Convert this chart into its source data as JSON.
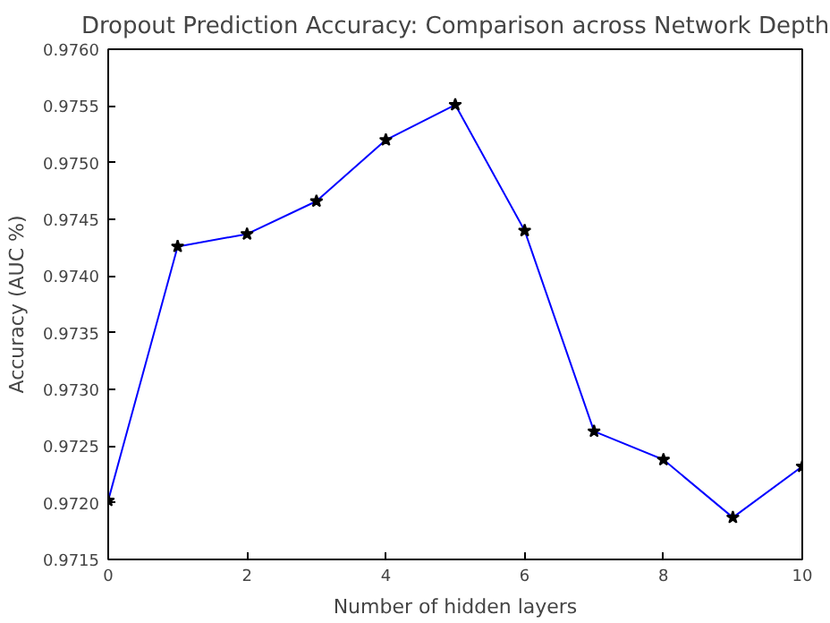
{
  "chart_data": {
    "type": "line",
    "title": "Dropout Prediction Accuracy: Comparison across Network Depth",
    "xlabel": "Number of hidden layers",
    "ylabel": "Accuracy (AUC %)",
    "x": [
      0,
      1,
      2,
      3,
      4,
      5,
      6,
      7,
      8,
      9,
      10
    ],
    "series": [
      {
        "color": "#0000ff",
        "values": [
          0.97202,
          0.97426,
          0.97437,
          0.97466,
          0.9752,
          0.97551,
          0.9744,
          0.97263,
          0.97238,
          0.97187,
          0.97232
        ]
      }
    ],
    "xlim": [
      0,
      10
    ],
    "xticks": [
      0,
      2,
      4,
      6,
      8,
      10
    ],
    "ylim": [
      0.9715,
      0.976
    ],
    "yticks": [
      {
        "value": 0.9715,
        "label": "0.9715"
      },
      {
        "value": 0.972,
        "label": "0.9720"
      },
      {
        "value": 0.9725,
        "label": "0.9725"
      },
      {
        "value": 0.973,
        "label": "0.9730"
      },
      {
        "value": 0.9735,
        "label": "0.9735"
      },
      {
        "value": 0.974,
        "label": "0.9740"
      },
      {
        "value": 0.9745,
        "label": "0.9745"
      },
      {
        "value": 0.975,
        "label": "0.9750"
      },
      {
        "value": 0.9755,
        "label": "0.9755"
      },
      {
        "value": 0.976,
        "label": "0.9760"
      }
    ],
    "grid": false,
    "marker": "star",
    "line_style": "solid"
  }
}
